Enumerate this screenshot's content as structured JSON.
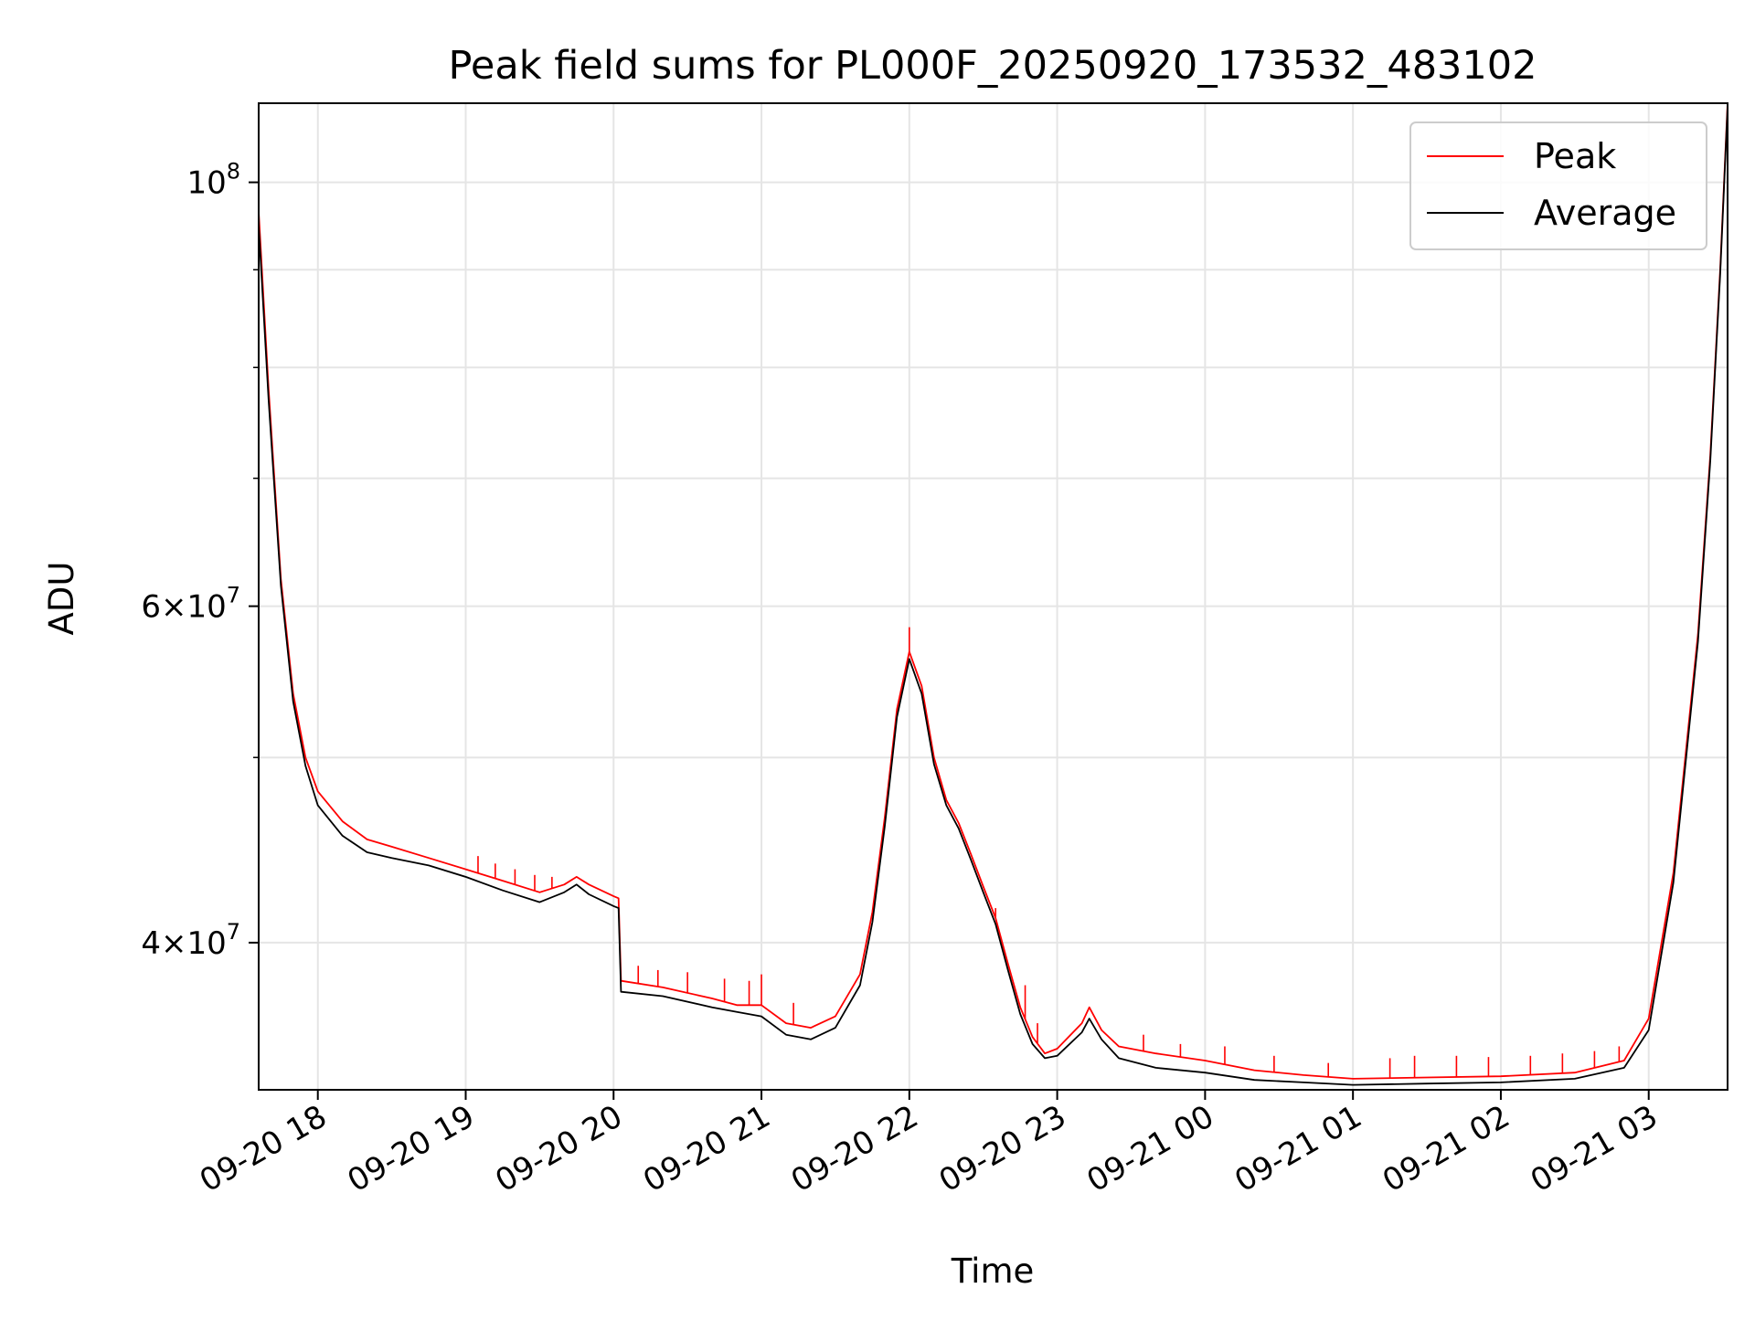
{
  "chart_data": {
    "type": "line",
    "title": "Peak field sums for PL000F_20250920_173532_483102",
    "xlabel": "Time",
    "ylabel": "ADU",
    "yscale": "log",
    "grid": true,
    "legend_position": "top-right",
    "xlim": [
      "2025-09-20 17:36",
      "2025-09-21 03:32"
    ],
    "ylim": [
      33500000,
      110000000
    ],
    "x_ticks": [
      {
        "at": "2025-09-20 18:00",
        "label": "09-20 18"
      },
      {
        "at": "2025-09-20 19:00",
        "label": "09-20 19"
      },
      {
        "at": "2025-09-20 20:00",
        "label": "09-20 20"
      },
      {
        "at": "2025-09-20 21:00",
        "label": "09-20 21"
      },
      {
        "at": "2025-09-20 22:00",
        "label": "09-20 22"
      },
      {
        "at": "2025-09-20 23:00",
        "label": "09-20 23"
      },
      {
        "at": "2025-09-21 00:00",
        "label": "09-21 00"
      },
      {
        "at": "2025-09-21 01:00",
        "label": "09-21 01"
      },
      {
        "at": "2025-09-21 02:00",
        "label": "09-21 02"
      },
      {
        "at": "2025-09-21 03:00",
        "label": "09-21 03"
      }
    ],
    "y_ticks_major": [
      {
        "value": 40000000,
        "base": "4",
        "exp": "7"
      },
      {
        "value": 60000000,
        "base": "6",
        "exp": "7"
      },
      {
        "value": 100000000,
        "base": "",
        "exp": "8"
      }
    ],
    "y_ticks_minor": [
      50000000,
      70000000,
      80000000,
      90000000
    ],
    "colors": {
      "peak": "#ff0000",
      "average": "#000000",
      "grid": "#e5e5e5"
    },
    "series": [
      {
        "name": "Peak",
        "color": "#ff0000",
        "points": [
          [
            "2025-09-20 17:36",
            96500000
          ],
          [
            "2025-09-20 17:40",
            78000000
          ],
          [
            "2025-09-20 17:45",
            62000000
          ],
          [
            "2025-09-20 17:50",
            54000000
          ],
          [
            "2025-09-20 17:55",
            50000000
          ],
          [
            "2025-09-20 18:00",
            48000000
          ],
          [
            "2025-09-20 18:10",
            46300000
          ],
          [
            "2025-09-20 18:20",
            45300000
          ],
          [
            "2025-09-20 18:30",
            44900000
          ],
          [
            "2025-09-20 18:45",
            44300000
          ],
          [
            "2025-09-20 19:00",
            43700000
          ],
          [
            "2025-09-20 19:15",
            43100000
          ],
          [
            "2025-09-20 19:30",
            42500000
          ],
          [
            "2025-09-20 19:40",
            42900000
          ],
          [
            "2025-09-20 19:45",
            43300000
          ],
          [
            "2025-09-20 19:50",
            42900000
          ],
          [
            "2025-09-20 20:00",
            42300000
          ],
          [
            "2025-09-20 20:02",
            42200000
          ],
          [
            "2025-09-20 20:03",
            38200000
          ],
          [
            "2025-09-20 20:20",
            37900000
          ],
          [
            "2025-09-20 20:40",
            37400000
          ],
          [
            "2025-09-20 20:50",
            37100000
          ],
          [
            "2025-09-20 21:00",
            37100000
          ],
          [
            "2025-09-20 21:10",
            36300000
          ],
          [
            "2025-09-20 21:20",
            36100000
          ],
          [
            "2025-09-20 21:30",
            36600000
          ],
          [
            "2025-09-20 21:40",
            38500000
          ],
          [
            "2025-09-20 21:45",
            41500000
          ],
          [
            "2025-09-20 21:50",
            46500000
          ],
          [
            "2025-09-20 21:55",
            53000000
          ],
          [
            "2025-09-20 22:00",
            56800000
          ],
          [
            "2025-09-20 22:05",
            54500000
          ],
          [
            "2025-09-20 22:10",
            50000000
          ],
          [
            "2025-09-20 22:15",
            47500000
          ],
          [
            "2025-09-20 22:20",
            46200000
          ],
          [
            "2025-09-20 22:25",
            44500000
          ],
          [
            "2025-09-20 22:30",
            42800000
          ],
          [
            "2025-09-20 22:35",
            41200000
          ],
          [
            "2025-09-20 22:40",
            39000000
          ],
          [
            "2025-09-20 22:45",
            37000000
          ],
          [
            "2025-09-20 22:50",
            35700000
          ],
          [
            "2025-09-20 22:55",
            35000000
          ],
          [
            "2025-09-20 23:00",
            35200000
          ],
          [
            "2025-09-20 23:10",
            36300000
          ],
          [
            "2025-09-20 23:13",
            37000000
          ],
          [
            "2025-09-20 23:18",
            36000000
          ],
          [
            "2025-09-20 23:25",
            35300000
          ],
          [
            "2025-09-20 23:40",
            35000000
          ],
          [
            "2025-09-21 00:00",
            34700000
          ],
          [
            "2025-09-21 00:20",
            34300000
          ],
          [
            "2025-09-21 00:40",
            34100000
          ],
          [
            "2025-09-21 01:00",
            33950000
          ],
          [
            "2025-09-21 01:30",
            34000000
          ],
          [
            "2025-09-21 02:00",
            34050000
          ],
          [
            "2025-09-21 02:30",
            34200000
          ],
          [
            "2025-09-21 02:50",
            34700000
          ],
          [
            "2025-09-21 03:00",
            36500000
          ],
          [
            "2025-09-21 03:10",
            43500000
          ],
          [
            "2025-09-21 03:20",
            58000000
          ],
          [
            "2025-09-21 03:25",
            72000000
          ],
          [
            "2025-09-21 03:29",
            90000000
          ],
          [
            "2025-09-21 03:32",
            110000000
          ]
        ],
        "spikes": [
          [
            "2025-09-20 19:05",
            44400000
          ],
          [
            "2025-09-20 19:12",
            44000000
          ],
          [
            "2025-09-20 19:20",
            43700000
          ],
          [
            "2025-09-20 19:28",
            43400000
          ],
          [
            "2025-09-20 19:35",
            43300000
          ],
          [
            "2025-09-20 20:10",
            38900000
          ],
          [
            "2025-09-20 20:18",
            38700000
          ],
          [
            "2025-09-20 20:30",
            38600000
          ],
          [
            "2025-09-20 20:45",
            38300000
          ],
          [
            "2025-09-20 20:55",
            38200000
          ],
          [
            "2025-09-20 21:00",
            38500000
          ],
          [
            "2025-09-20 21:13",
            37200000
          ],
          [
            "2025-09-20 22:00",
            58500000
          ],
          [
            "2025-09-20 22:35",
            41700000
          ],
          [
            "2025-09-20 22:47",
            38000000
          ],
          [
            "2025-09-20 22:52",
            36300000
          ],
          [
            "2025-09-20 23:35",
            35800000
          ],
          [
            "2025-09-20 23:50",
            35400000
          ],
          [
            "2025-09-21 00:08",
            35300000
          ],
          [
            "2025-09-21 00:28",
            34900000
          ],
          [
            "2025-09-21 00:50",
            34600000
          ],
          [
            "2025-09-21 01:15",
            34800000
          ],
          [
            "2025-09-21 01:25",
            34900000
          ],
          [
            "2025-09-21 01:42",
            34900000
          ],
          [
            "2025-09-21 01:55",
            34850000
          ],
          [
            "2025-09-21 02:12",
            34900000
          ],
          [
            "2025-09-21 02:25",
            35000000
          ],
          [
            "2025-09-21 02:38",
            35100000
          ],
          [
            "2025-09-21 02:48",
            35300000
          ]
        ]
      },
      {
        "name": "Average",
        "color": "#000000",
        "points": [
          [
            "2025-09-20 17:36",
            95000000
          ],
          [
            "2025-09-20 17:40",
            77000000
          ],
          [
            "2025-09-20 17:45",
            61500000
          ],
          [
            "2025-09-20 17:50",
            53500000
          ],
          [
            "2025-09-20 17:55",
            49500000
          ],
          [
            "2025-09-20 18:00",
            47200000
          ],
          [
            "2025-09-20 18:10",
            45500000
          ],
          [
            "2025-09-20 18:20",
            44600000
          ],
          [
            "2025-09-20 18:30",
            44300000
          ],
          [
            "2025-09-20 18:45",
            43900000
          ],
          [
            "2025-09-20 19:00",
            43300000
          ],
          [
            "2025-09-20 19:15",
            42600000
          ],
          [
            "2025-09-20 19:30",
            42000000
          ],
          [
            "2025-09-20 19:40",
            42500000
          ],
          [
            "2025-09-20 19:45",
            42900000
          ],
          [
            "2025-09-20 19:50",
            42400000
          ],
          [
            "2025-09-20 20:00",
            41800000
          ],
          [
            "2025-09-20 20:02",
            41700000
          ],
          [
            "2025-09-20 20:03",
            37700000
          ],
          [
            "2025-09-20 20:20",
            37500000
          ],
          [
            "2025-09-20 20:40",
            37000000
          ],
          [
            "2025-09-20 20:50",
            36800000
          ],
          [
            "2025-09-20 21:00",
            36600000
          ],
          [
            "2025-09-20 21:10",
            35800000
          ],
          [
            "2025-09-20 21:20",
            35600000
          ],
          [
            "2025-09-20 21:30",
            36100000
          ],
          [
            "2025-09-20 21:40",
            38000000
          ],
          [
            "2025-09-20 21:45",
            41000000
          ],
          [
            "2025-09-20 21:50",
            46000000
          ],
          [
            "2025-09-20 21:55",
            52500000
          ],
          [
            "2025-09-20 22:00",
            56300000
          ],
          [
            "2025-09-20 22:05",
            54000000
          ],
          [
            "2025-09-20 22:10",
            49600000
          ],
          [
            "2025-09-20 22:15",
            47200000
          ],
          [
            "2025-09-20 22:20",
            45900000
          ],
          [
            "2025-09-20 22:25",
            44200000
          ],
          [
            "2025-09-20 22:30",
            42500000
          ],
          [
            "2025-09-20 22:35",
            40900000
          ],
          [
            "2025-09-20 22:40",
            38700000
          ],
          [
            "2025-09-20 22:45",
            36700000
          ],
          [
            "2025-09-20 22:50",
            35400000
          ],
          [
            "2025-09-20 22:55",
            34800000
          ],
          [
            "2025-09-20 23:00",
            34900000
          ],
          [
            "2025-09-20 23:10",
            35900000
          ],
          [
            "2025-09-20 23:13",
            36500000
          ],
          [
            "2025-09-20 23:18",
            35600000
          ],
          [
            "2025-09-20 23:25",
            34800000
          ],
          [
            "2025-09-20 23:40",
            34400000
          ],
          [
            "2025-09-21 00:00",
            34200000
          ],
          [
            "2025-09-21 00:20",
            33900000
          ],
          [
            "2025-09-21 00:40",
            33800000
          ],
          [
            "2025-09-21 01:00",
            33700000
          ],
          [
            "2025-09-21 01:30",
            33750000
          ],
          [
            "2025-09-21 02:00",
            33800000
          ],
          [
            "2025-09-21 02:30",
            33950000
          ],
          [
            "2025-09-21 02:50",
            34400000
          ],
          [
            "2025-09-21 03:00",
            36000000
          ],
          [
            "2025-09-21 03:10",
            43000000
          ],
          [
            "2025-09-21 03:20",
            57500000
          ],
          [
            "2025-09-21 03:25",
            71500000
          ],
          [
            "2025-09-21 03:29",
            89500000
          ],
          [
            "2025-09-21 03:32",
            109500000
          ]
        ]
      }
    ]
  }
}
